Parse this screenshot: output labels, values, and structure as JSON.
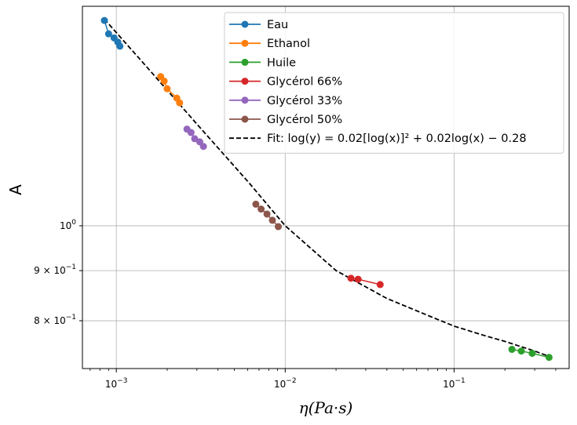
{
  "chart_data": {
    "type": "scatter",
    "xscale": "log",
    "yscale": "log",
    "xlim": [
      0.00063,
      0.48
    ],
    "ylim": [
      0.715,
      1.675
    ],
    "xlabel": "η(Pa·s)",
    "ylabel": "A",
    "grid": true,
    "legend_position": "top-right",
    "x_ticks": [
      {
        "value": 0.001,
        "base": "10",
        "exp": "−3"
      },
      {
        "value": 0.01,
        "base": "10",
        "exp": "−2"
      },
      {
        "value": 0.1,
        "base": "10",
        "exp": "−1"
      }
    ],
    "y_ticks": [
      {
        "value": 1.0,
        "main": "10",
        "exp": "0"
      },
      {
        "value": 0.9,
        "main": "9 × 10",
        "exp": "−1"
      },
      {
        "value": 0.8,
        "main": "8 × 10",
        "exp": "−1"
      }
    ],
    "series": [
      {
        "name": "Eau",
        "color": "#1f77b4",
        "x": [
          0.00085,
          0.0009,
          0.00097,
          0.00102,
          0.00105
        ],
        "y": [
          1.62,
          1.57,
          1.555,
          1.54,
          1.525
        ]
      },
      {
        "name": "Ethanol",
        "color": "#ff7f0e",
        "x": [
          0.00183,
          0.00192,
          0.002,
          0.00228,
          0.00237
        ],
        "y": [
          1.42,
          1.405,
          1.38,
          1.35,
          1.335
        ]
      },
      {
        "name": "Huile",
        "color": "#2ca02c",
        "x": [
          0.22,
          0.25,
          0.29,
          0.365
        ],
        "y": [
          0.748,
          0.745,
          0.741,
          0.734
        ]
      },
      {
        "name": "Glycérol 66%",
        "color": "#d62728",
        "x": [
          0.0245,
          0.027,
          0.0365
        ],
        "y": [
          0.884,
          0.882,
          0.871
        ]
      },
      {
        "name": "Glycérol 33%",
        "color": "#9467bd",
        "x": [
          0.00262,
          0.00277,
          0.00291,
          0.00312,
          0.00328
        ],
        "y": [
          1.255,
          1.245,
          1.227,
          1.218,
          1.205
        ]
      },
      {
        "name": "Glycérol 50%",
        "color": "#8c564b",
        "x": [
          0.0067,
          0.0072,
          0.0078,
          0.0084,
          0.0091
        ],
        "y": [
          1.052,
          1.04,
          1.028,
          1.013,
          0.998
        ]
      }
    ],
    "fit": {
      "name": "Fit: log(y) = 0.02[log(x)]² + 0.02log(x) − 0.28",
      "color": "#000000",
      "style": "dashed",
      "x": [
        0.00085,
        0.0015,
        0.003,
        0.006,
        0.01,
        0.02,
        0.04,
        0.07,
        0.1,
        0.15,
        0.2,
        0.3,
        0.37
      ],
      "y": [
        1.625,
        1.455,
        1.27,
        1.11,
        1.0,
        0.9,
        0.843,
        0.81,
        0.79,
        0.773,
        0.762,
        0.745,
        0.735
      ]
    }
  }
}
